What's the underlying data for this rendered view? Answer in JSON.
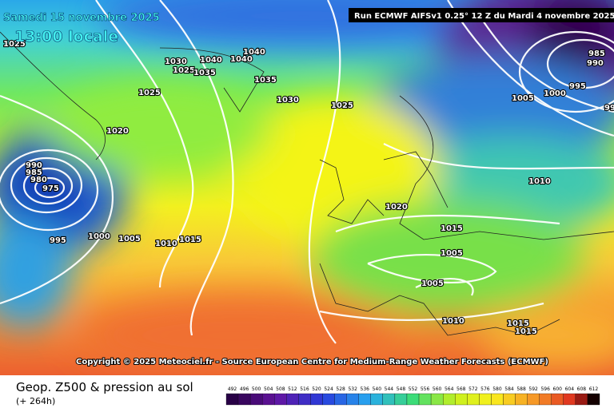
{
  "header": {
    "date": "Samedi 15 novembre 2025",
    "time": "13:00 locale",
    "run": "Run ECMWF AIFSv1 0.25° 12 Z du Mardi 4 novembre 2025"
  },
  "copyright": "Copyright © 2025 Meteociel.fr - Source European Centre for Medium-Range Weather Forecasts (ECMWF)",
  "footer": {
    "title": "Geop. Z500 & pression au sol",
    "subtitle": "(+ 264h)"
  },
  "isobar_labels": [
    "1025",
    "1030",
    "1040",
    "1040",
    "1040",
    "1025",
    "1035",
    "1035",
    "1030",
    "1025",
    "1025",
    "1020",
    "990",
    "985",
    "980",
    "975",
    "995",
    "1000",
    "1005",
    "1010",
    "1015",
    "1020",
    "1015",
    "1005",
    "1005",
    "1010",
    "1015",
    "1015",
    "1005",
    "1000",
    "995",
    "990",
    "985",
    "1010",
    "99"
  ],
  "legend": {
    "labels": [
      "492",
      "496",
      "500",
      "504",
      "508",
      "512",
      "516",
      "520",
      "524",
      "528",
      "532",
      "536",
      "540",
      "544",
      "548",
      "552",
      "556",
      "560",
      "564",
      "568",
      "572",
      "576",
      "580",
      "584",
      "588",
      "592",
      "596",
      "600",
      "604",
      "608",
      "612"
    ]
  }
}
